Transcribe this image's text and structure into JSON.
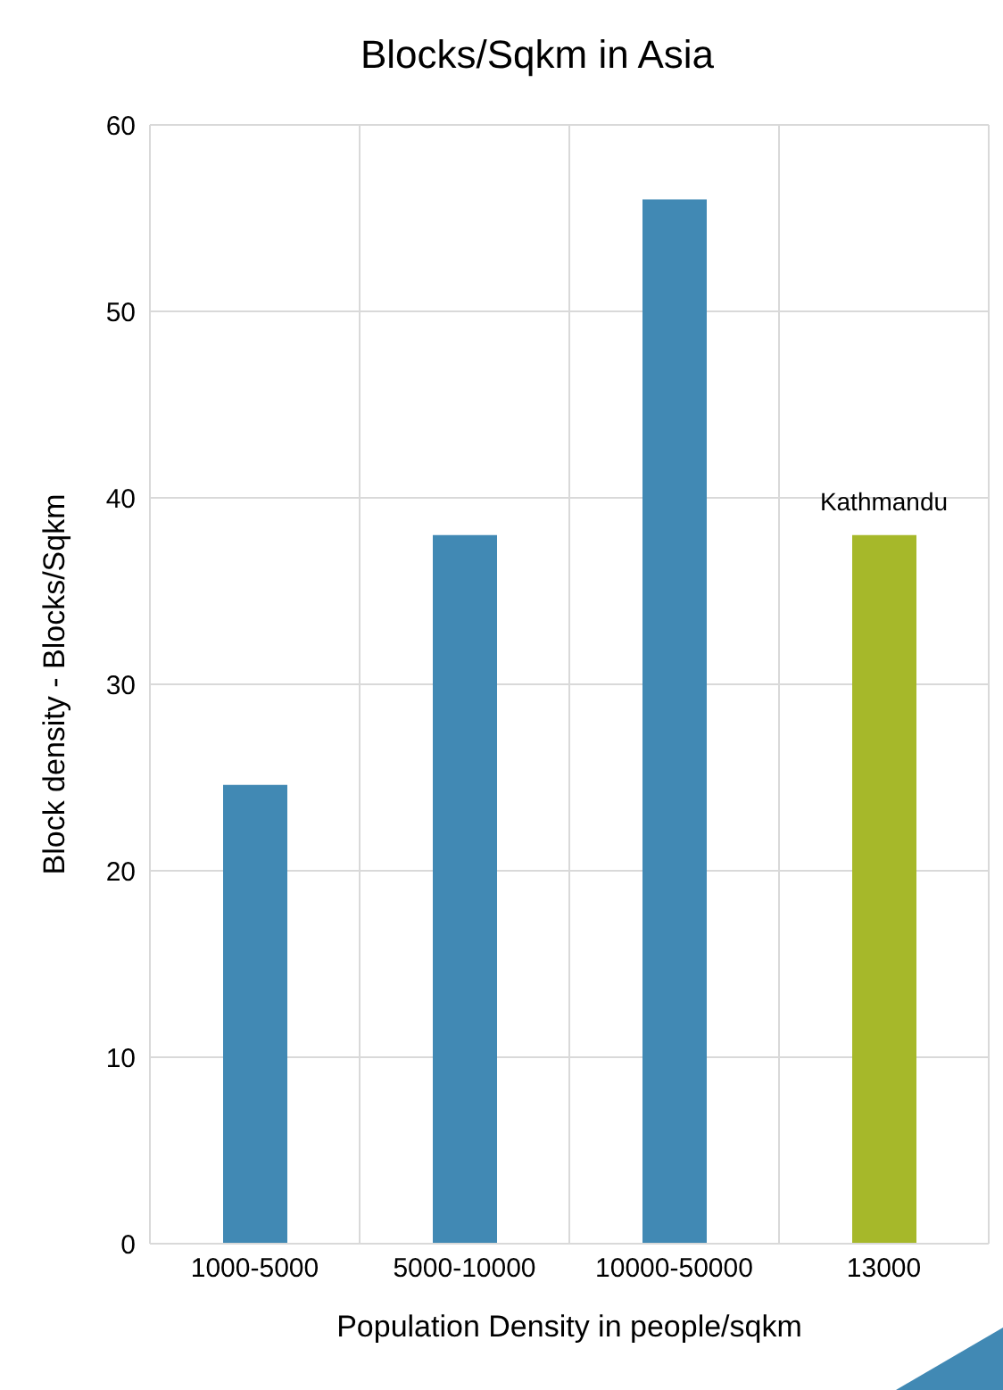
{
  "chart_data": {
    "type": "bar",
    "title": "Blocks/Sqkm in Asia",
    "xlabel": "Population Density in people/sqkm",
    "ylabel": "Block density - Blocks/Sqkm",
    "categories": [
      "1000-5000",
      "5000-10000",
      "10000-50000",
      "13000"
    ],
    "values": [
      24.6,
      38,
      56,
      38
    ],
    "colors": [
      "#4189b4",
      "#4189b4",
      "#4189b4",
      "#a6b82a"
    ],
    "ylim": [
      0,
      60
    ],
    "yticks": [
      0,
      10,
      20,
      30,
      40,
      50,
      60
    ],
    "grid": true,
    "annotations": [
      {
        "text": "Kathmandu",
        "x": "13000",
        "y": 38
      }
    ]
  }
}
